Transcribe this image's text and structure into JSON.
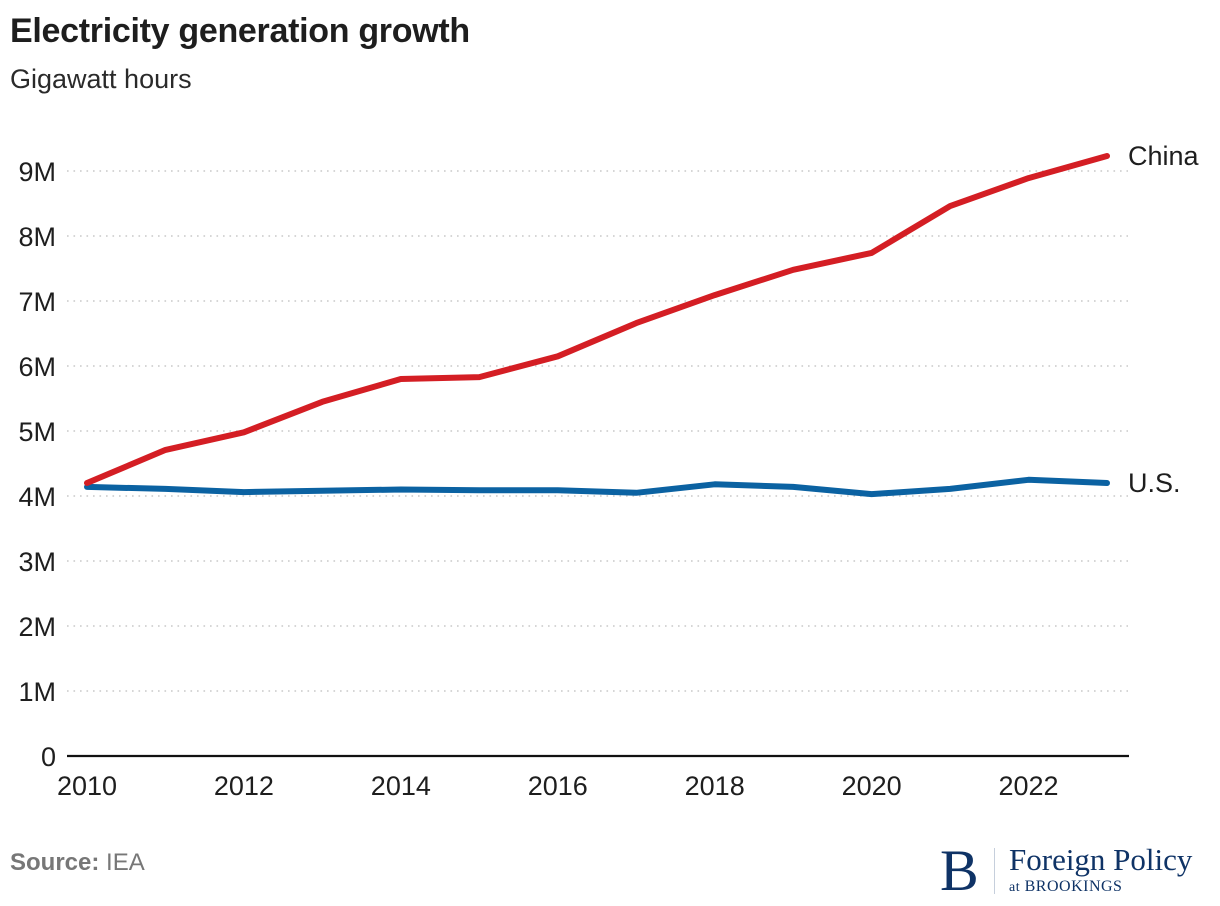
{
  "header": {
    "title": "Electricity generation growth",
    "subtitle": "Gigawatt hours"
  },
  "footer": {
    "source_label": "Source:",
    "source_value": "IEA",
    "logo_letter": "B",
    "logo_main": "Foreign Policy",
    "logo_sub_at": "at",
    "logo_sub_org": "BROOKINGS"
  },
  "colors": {
    "china": "#d41e24",
    "us": "#0b62a2",
    "grid": "#c8c8c8",
    "axis": "#111111"
  },
  "chart_data": {
    "type": "line",
    "title": "Electricity generation growth",
    "subtitle": "Gigawatt hours",
    "xlabel": "",
    "ylabel": "Gigawatt hours",
    "x": [
      2010,
      2011,
      2012,
      2013,
      2014,
      2015,
      2016,
      2017,
      2018,
      2019,
      2020,
      2021,
      2022,
      2023
    ],
    "xlim": [
      2010,
      2023
    ],
    "ylim": [
      0,
      9000000
    ],
    "x_ticks": [
      2010,
      2012,
      2014,
      2016,
      2018,
      2020,
      2022
    ],
    "x_tick_labels": [
      "2010",
      "2012",
      "2014",
      "2016",
      "2018",
      "2020",
      "2022"
    ],
    "y_ticks": [
      0,
      1000000,
      2000000,
      3000000,
      4000000,
      5000000,
      6000000,
      7000000,
      8000000,
      9000000
    ],
    "y_tick_labels": [
      "0",
      "1M",
      "2M",
      "3M",
      "4M",
      "5M",
      "6M",
      "7M",
      "8M",
      "9M"
    ],
    "grid": true,
    "legend": "direct-labels-right",
    "series": [
      {
        "name": "China",
        "label": "China",
        "color": "#d41e24",
        "values": [
          4200000,
          4710000,
          4980000,
          5450000,
          5800000,
          5830000,
          6150000,
          6660000,
          7090000,
          7480000,
          7740000,
          8460000,
          8890000,
          9230000
        ]
      },
      {
        "name": "U.S.",
        "label": "U.S.",
        "color": "#0b62a2",
        "values": [
          4140000,
          4110000,
          4060000,
          4080000,
          4100000,
          4090000,
          4090000,
          4050000,
          4180000,
          4140000,
          4030000,
          4110000,
          4250000,
          4200000
        ]
      }
    ]
  }
}
